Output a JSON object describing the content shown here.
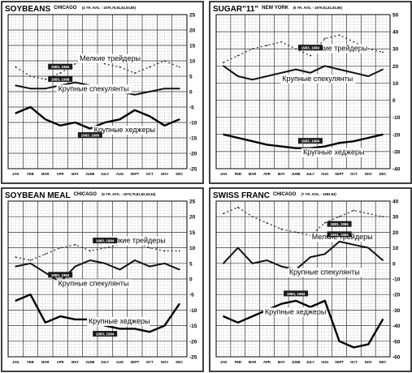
{
  "chart_data": [
    {
      "type": "line",
      "title": "SOYBEANS",
      "subtitle": "CHICAGO",
      "note": "(4 YR. AVG. - 1979,79,81,82,83,85)",
      "unit": "%",
      "ylim": [
        -25,
        25
      ],
      "ytick_step": 5,
      "grid": true,
      "x": [
        "JAN",
        "FEB",
        "MAR",
        "APR",
        "MAY",
        "JUNE",
        "JULY",
        "AUG",
        "SEPT",
        "OCT",
        "NOV",
        "DEC"
      ],
      "series": [
        {
          "name": "Мелкие трейдеры",
          "values": [
            8,
            5,
            4,
            6,
            9,
            11,
            9,
            8,
            6,
            8,
            10,
            8
          ]
        },
        {
          "name": "Крупные спекулянты",
          "values": [
            2,
            1,
            1,
            2,
            3,
            2,
            1,
            0,
            -1,
            0,
            1,
            1
          ]
        },
        {
          "name": "Крупные хеджеры",
          "values": [
            -7,
            -5,
            -9,
            -11,
            -10,
            -12,
            -10,
            -9,
            -6,
            -8,
            -11,
            -9
          ]
        }
      ],
      "data_labels": [
        "1983, 1984",
        "1983, 1986",
        "1983, 1986"
      ]
    },
    {
      "type": "line",
      "title": "SUGAR\"11\"",
      "subtitle": "NEW YORK",
      "note": "(6 YR. AVG. - 1979,81,81,82,86)",
      "unit": "%",
      "ylim": [
        -40,
        50
      ],
      "ytick_step": 10,
      "grid": true,
      "x": [
        "JAN",
        "FEB",
        "MAR",
        "APR",
        "MAY",
        "JUNE",
        "JULY",
        "AUG",
        "SEPT",
        "OCT",
        "NOV",
        "DEC"
      ],
      "series": [
        {
          "name": "Мелкие трейдеры",
          "values": [
            22,
            26,
            30,
            32,
            34,
            30,
            26,
            36,
            38,
            34,
            30,
            28
          ]
        },
        {
          "name": "Крупные спекулянты",
          "values": [
            20,
            14,
            12,
            14,
            16,
            18,
            16,
            20,
            18,
            16,
            14,
            18
          ]
        },
        {
          "name": "Крупные хеджеры",
          "values": [
            -20,
            -22,
            -24,
            -26,
            -27,
            -28,
            -28,
            -27,
            -25,
            -24,
            -22,
            -20
          ]
        }
      ],
      "data_labels": [
        "1983, 1984",
        "1983, 1984"
      ]
    },
    {
      "type": "line",
      "title": "SOYBEAN MEAL",
      "subtitle": "CHICAGO",
      "note": "(6 YR. AVG. - 1975,75,81,82,83,84)",
      "unit": "%",
      "ylim": [
        -25,
        25
      ],
      "ytick_step": 5,
      "grid": true,
      "x": [
        "JAN",
        "FEB",
        "MAR",
        "APR",
        "MAY",
        "JUNE",
        "JULY",
        "AUG",
        "SEPT",
        "OCT",
        "NOV",
        "DEC"
      ],
      "series": [
        {
          "name": "Мелкие трейдеры",
          "values": [
            7,
            6,
            8,
            10,
            11,
            9,
            10,
            11,
            12,
            10,
            9,
            9
          ]
        },
        {
          "name": "Крупные спекулянты",
          "values": [
            4,
            5,
            2,
            -1,
            4,
            6,
            5,
            3,
            6,
            4,
            5,
            3
          ]
        },
        {
          "name": "Крупные хеджеры",
          "values": [
            -7,
            -5,
            -14,
            -12,
            -13,
            -13,
            -15,
            -16,
            -16,
            -17,
            -15,
            -8
          ]
        }
      ],
      "data_labels": [
        "1983, 1984",
        "1983, 1984",
        "1983, 1984"
      ]
    },
    {
      "type": "line",
      "title": "SWISS FRANC",
      "subtitle": "CHICAGO",
      "note": "(7 YR. AVG. - 1983-84)",
      "unit": "%",
      "ylim": [
        -60,
        40
      ],
      "ytick_step": 10,
      "grid": true,
      "x": [
        "JAN",
        "FEB",
        "MAR",
        "APR",
        "MAY",
        "JUNE",
        "JULY",
        "AUG",
        "SEPT",
        "OCT",
        "NOV",
        "DEC"
      ],
      "series": [
        {
          "name": "Мелкие трейдеры",
          "values": [
            32,
            36,
            30,
            26,
            22,
            20,
            18,
            26,
            30,
            34,
            32,
            30
          ]
        },
        {
          "name": "Крупные спекулянты",
          "values": [
            0,
            10,
            0,
            2,
            -2,
            -4,
            4,
            6,
            14,
            12,
            10,
            2
          ]
        },
        {
          "name": "Крупные хеджеры",
          "values": [
            -34,
            -38,
            -34,
            -30,
            -26,
            -24,
            -28,
            -24,
            -50,
            -54,
            -52,
            -36
          ]
        }
      ],
      "data_labels": [
        "1983, 1984",
        "1983, 1984",
        "1983, 1984"
      ]
    }
  ]
}
